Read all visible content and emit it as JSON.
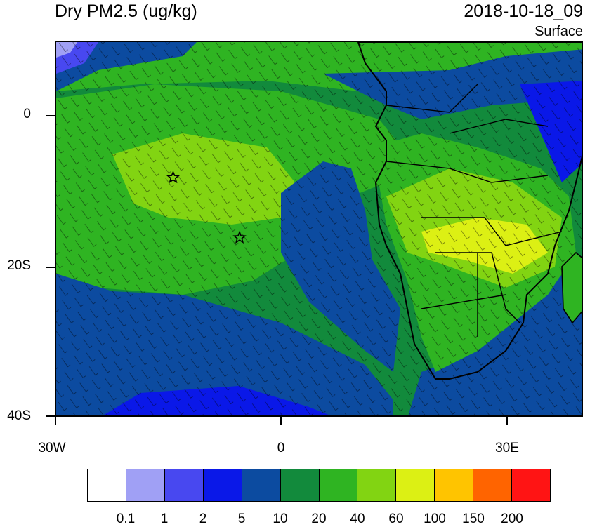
{
  "header": {
    "title": "Dry PM2.5 (ug/kg)",
    "datetime": "2018-10-18_09",
    "level": "Surface"
  },
  "map": {
    "extent": {
      "lon_min": -30,
      "lon_max": 40,
      "lat_min": -40,
      "lat_max": 10
    },
    "lat_labels": [
      "0",
      "20S",
      "40S"
    ],
    "lon_labels": [
      "30W",
      "0",
      "30E"
    ],
    "markers": [
      {
        "name": "star-marker-1",
        "lon": -14.5,
        "lat": -8
      },
      {
        "name": "star-marker-2",
        "lon": -5.7,
        "lat": -16
      }
    ]
  },
  "colorbar": {
    "colors": [
      "#ffffff",
      "#a0a0f5",
      "#4848f0",
      "#0a18e8",
      "#0c4ba0",
      "#128a3c",
      "#2fb422",
      "#82d412",
      "#dcf014",
      "#ffc400",
      "#ff6400",
      "#ff1414"
    ],
    "labels": [
      "0.1",
      "1",
      "2",
      "5",
      "10",
      "20",
      "40",
      "60",
      "100",
      "150",
      "200"
    ]
  }
}
